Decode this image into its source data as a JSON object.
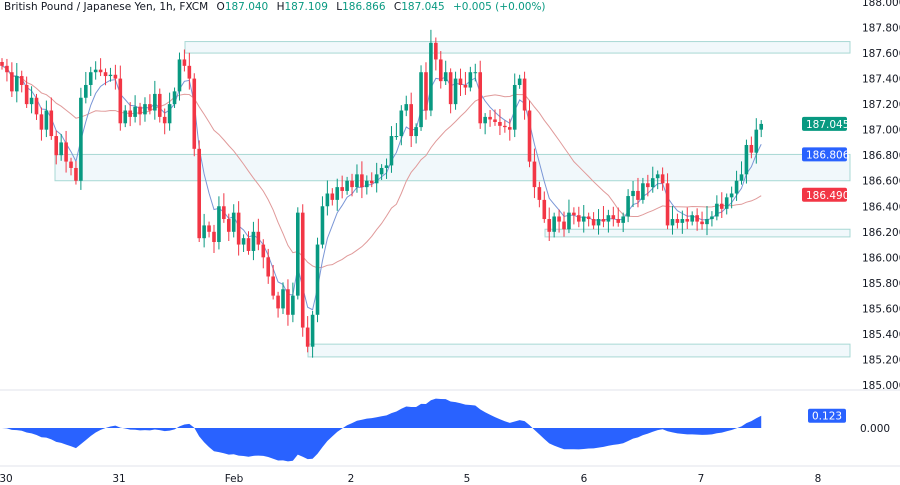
{
  "header": {
    "symbol": "British Pound / Japanese Yen, 1h, FXCM",
    "open_label": "O",
    "open": "187.040",
    "high_label": "H",
    "high": "187.109",
    "low_label": "L",
    "low": "186.866",
    "close_label": "C",
    "close": "187.045",
    "change": "+0.005 (+0.00%)"
  },
  "colors": {
    "up": "#089981",
    "down": "#f23645",
    "fast_ma": "#7a96d6",
    "slow_ma": "#e09a9a",
    "zone_fill": "#f1f8fb",
    "zone_line": "#a8d8d4",
    "oscillator": "#2962ff",
    "last_price_badge": "#089981",
    "fast_ma_badge": "#2962ff",
    "slow_ma_badge": "#f23645"
  },
  "chart_data": [
    {
      "type": "candlestick",
      "title": "British Pound / Japanese Yen, 1h, FXCM",
      "ylim": [
        185.0,
        188.0
      ],
      "y_ticks": [
        "188.000",
        "187.800",
        "187.600",
        "187.400",
        "187.200",
        "187.000",
        "186.800",
        "186.600",
        "186.400",
        "186.200",
        "186.000",
        "185.800",
        "185.600",
        "185.400",
        "185.200",
        "185.000"
      ],
      "x_ticks": [
        "30",
        "31",
        "Feb",
        "2",
        "5",
        "6",
        "7",
        "8"
      ],
      "closes": [
        187.5,
        187.45,
        187.3,
        187.42,
        187.35,
        187.2,
        187.25,
        187.12,
        187.0,
        187.15,
        186.95,
        186.8,
        186.9,
        186.75,
        186.7,
        186.6,
        187.25,
        187.35,
        187.45,
        187.47,
        187.45,
        187.42,
        187.43,
        187.4,
        187.05,
        187.15,
        187.1,
        187.18,
        187.12,
        187.2,
        187.15,
        187.28,
        187.1,
        187.05,
        187.2,
        187.3,
        187.55,
        187.5,
        187.4,
        186.85,
        186.15,
        186.25,
        186.2,
        186.12,
        186.4,
        186.3,
        186.2,
        186.35,
        186.1,
        186.15,
        186.05,
        186.2,
        186.1,
        186.0,
        185.85,
        185.7,
        185.6,
        185.75,
        185.55,
        185.7,
        186.35,
        185.45,
        185.3,
        185.55,
        186.1,
        186.4,
        186.5,
        186.45,
        186.55,
        186.52,
        186.6,
        186.55,
        186.65,
        186.55,
        186.6,
        186.58,
        186.65,
        186.7,
        186.72,
        186.95,
        186.95,
        187.15,
        187.2,
        186.95,
        187.02,
        187.45,
        187.15,
        187.68,
        187.55,
        187.38,
        187.45,
        187.2,
        187.4,
        187.35,
        187.33,
        187.45,
        187.45,
        187.05,
        187.1,
        187.08,
        187.06,
        187.03,
        187.02,
        187.0,
        187.35,
        187.4,
        187.15,
        186.75,
        186.55,
        186.45,
        186.3,
        186.2,
        186.32,
        186.28,
        186.22,
        186.35,
        186.33,
        186.28,
        186.32,
        186.3,
        186.25,
        186.3,
        186.28,
        186.33,
        186.3,
        186.27,
        186.32,
        186.48,
        186.52,
        186.45,
        186.58,
        186.55,
        186.62,
        186.65,
        186.58,
        186.25,
        186.3,
        186.27,
        186.3,
        186.28,
        186.33,
        186.28,
        186.26,
        186.3,
        186.32,
        186.42,
        186.38,
        186.47,
        186.5,
        186.6,
        186.65,
        186.88,
        186.82,
        187.0,
        187.045
      ],
      "zones": [
        {
          "top": 187.69,
          "bottom": 187.6
        },
        {
          "top": 186.806,
          "bottom": 186.6
        },
        {
          "top": 186.22,
          "bottom": 186.16
        },
        {
          "top": 185.32,
          "bottom": 185.22
        }
      ],
      "badges": {
        "last_price": "187.045",
        "fast_ma": "186.806",
        "slow_ma": "186.490"
      }
    },
    {
      "type": "area",
      "y_ticks": [
        "0.000"
      ],
      "badge": "0.123"
    }
  ]
}
